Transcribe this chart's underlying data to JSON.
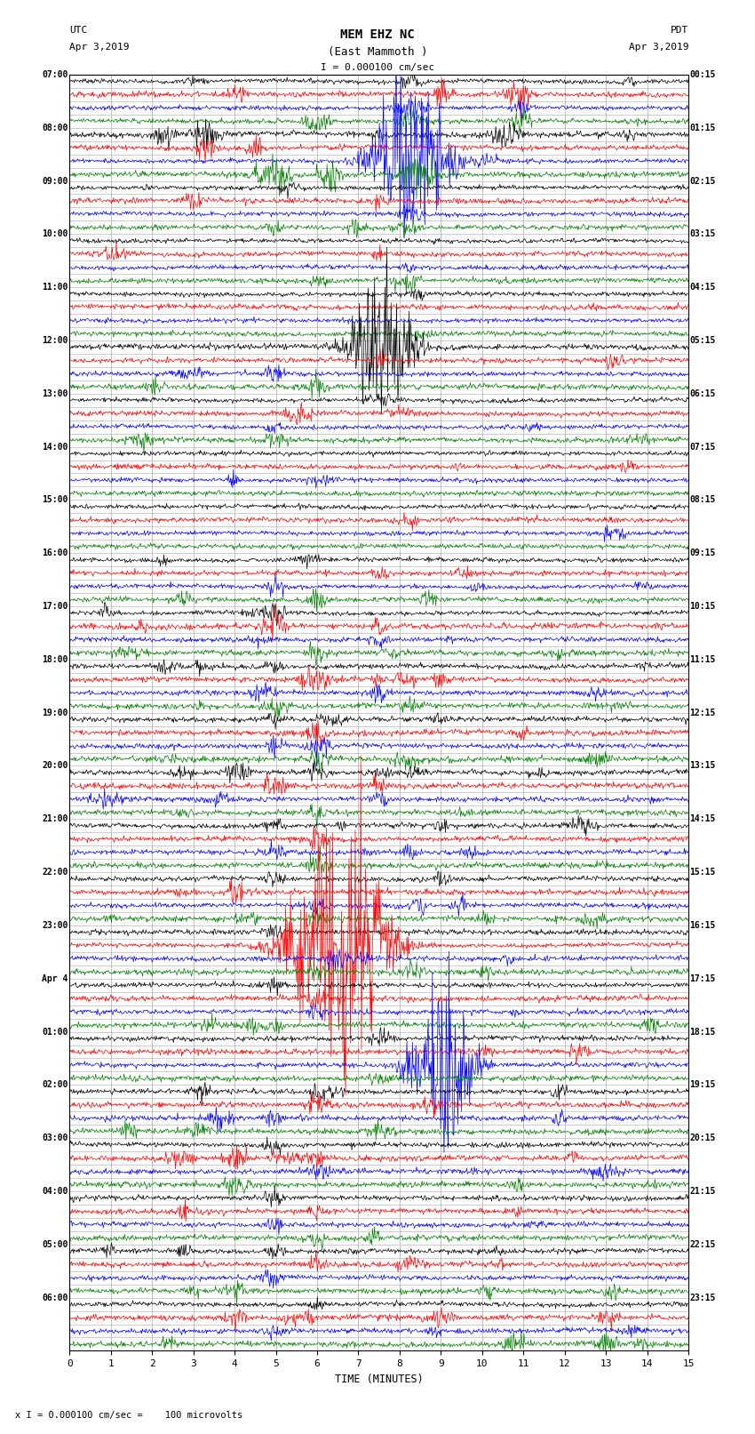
{
  "title_line1": "MEM EHZ NC",
  "title_line2": "(East Mammoth )",
  "scale_label": "I = 0.000100 cm/sec",
  "left_label": "UTC",
  "left_date": "Apr 3,2019",
  "right_label": "PDT",
  "right_date": "Apr 3,2019",
  "bottom_label": "TIME (MINUTES)",
  "footnote": "x I = 0.000100 cm/sec =    100 microvolts",
  "utc_labels": [
    "07:00",
    "08:00",
    "09:00",
    "10:00",
    "11:00",
    "12:00",
    "13:00",
    "14:00",
    "15:00",
    "16:00",
    "17:00",
    "18:00",
    "19:00",
    "20:00",
    "21:00",
    "22:00",
    "23:00",
    "Apr 4",
    "01:00",
    "02:00",
    "03:00",
    "04:00",
    "05:00",
    "06:00"
  ],
  "pdt_labels": [
    "00:15",
    "01:15",
    "02:15",
    "03:15",
    "04:15",
    "05:15",
    "06:15",
    "07:15",
    "08:15",
    "09:15",
    "10:15",
    "11:15",
    "12:15",
    "13:15",
    "14:15",
    "15:15",
    "16:15",
    "17:15",
    "18:15",
    "19:15",
    "20:15",
    "21:15",
    "22:15",
    "23:15"
  ],
  "num_hours": 24,
  "traces_per_hour": 4,
  "colors": [
    "black",
    "red",
    "blue",
    "green"
  ],
  "bg_color": "#ffffff",
  "grid_color": "#aaaaaa",
  "xmin": 0,
  "xmax": 15,
  "xticks": [
    0,
    1,
    2,
    3,
    4,
    5,
    6,
    7,
    8,
    9,
    10,
    11,
    12,
    13,
    14,
    15
  ],
  "figsize": [
    8.5,
    16.13
  ],
  "dpi": 100,
  "trace_amplitude": 0.12,
  "trace_lw": 0.5
}
